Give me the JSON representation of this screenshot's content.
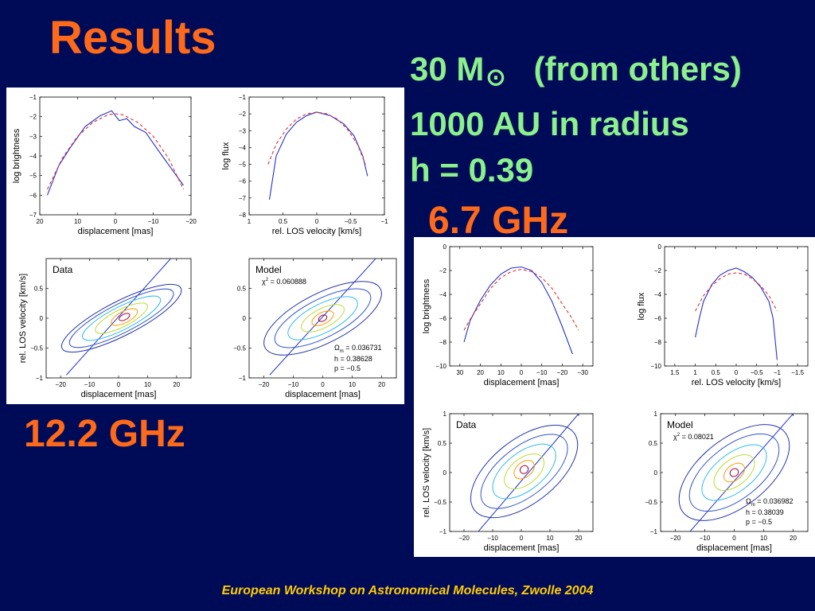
{
  "slide": {
    "title": "Results",
    "params": {
      "mass": "30 M",
      "sun_symbol": "⊙",
      "mass_note": "(from others)",
      "radius": "1000 AU in radius",
      "h": "h = 0.39"
    },
    "freq_a": "6.7 GHz",
    "freq_b": "12.2 GHz",
    "footer": "European Workshop on Astronomical Molecules, Zwolle 2004"
  },
  "colors": {
    "background": "#000b58",
    "title": "#ff6a1a",
    "params": "#8cf08c",
    "footer": "#ffcc00",
    "data_line": "#2233cc",
    "model_line": "#e03030"
  },
  "chart_data": [
    {
      "figure": "12.2 GHz",
      "panel": "brightness",
      "type": "line",
      "xlabel": "displacement [mas]",
      "ylabel": "log brightness",
      "xlim": [
        20,
        -20
      ],
      "ylim": [
        -7,
        -1
      ],
      "xticks": [
        20,
        10,
        0,
        -10,
        -20
      ],
      "yticks": [
        -1,
        -2,
        -3,
        -4,
        -5,
        -6,
        -7
      ],
      "series": [
        {
          "role": "data",
          "x": [
            18,
            15,
            12,
            8,
            4,
            1,
            -1,
            -3,
            -5,
            -8,
            -12,
            -15,
            -18
          ],
          "y": [
            -6.0,
            -4.5,
            -3.6,
            -2.5,
            -1.95,
            -1.7,
            -2.2,
            -2.1,
            -2.5,
            -2.8,
            -3.9,
            -4.7,
            -5.5
          ]
        },
        {
          "role": "model",
          "x": [
            18,
            14,
            10,
            6,
            2,
            0,
            -2,
            -6,
            -10,
            -14,
            -18
          ],
          "y": [
            -5.7,
            -4.1,
            -3.0,
            -2.3,
            -1.9,
            -1.85,
            -1.9,
            -2.3,
            -3.0,
            -4.1,
            -5.7
          ]
        }
      ]
    },
    {
      "figure": "12.2 GHz",
      "panel": "flux",
      "type": "line",
      "xlabel": "rel. LOS velocity [km/s]",
      "ylabel": "log flux",
      "xlim": [
        1,
        -1
      ],
      "ylim": [
        -8,
        -1
      ],
      "xticks": [
        1,
        0.5,
        0,
        -0.5,
        -1
      ],
      "yticks": [
        -1,
        -2,
        -3,
        -4,
        -5,
        -6,
        -7,
        -8
      ],
      "series": [
        {
          "role": "data",
          "x": [
            0.7,
            0.6,
            0.45,
            0.3,
            0.15,
            0,
            -0.2,
            -0.4,
            -0.55,
            -0.68,
            -0.75
          ],
          "y": [
            -7.1,
            -4.5,
            -3.2,
            -2.5,
            -2.1,
            -1.9,
            -2.1,
            -2.6,
            -3.3,
            -4.5,
            -5.7
          ]
        },
        {
          "role": "model",
          "x": [
            0.72,
            0.6,
            0.45,
            0.3,
            0.15,
            0,
            -0.15,
            -0.3,
            -0.45,
            -0.6,
            -0.72
          ],
          "y": [
            -5.0,
            -3.8,
            -2.9,
            -2.3,
            -2.0,
            -1.9,
            -2.0,
            -2.3,
            -2.9,
            -3.8,
            -5.0
          ]
        }
      ]
    },
    {
      "figure": "12.2 GHz",
      "panel": "data-pv",
      "type": "contour",
      "label": "Data",
      "xlabel": "displacement [mas]",
      "ylabel": "rel. LOS velocity [km/s]",
      "xlim": [
        -25,
        25
      ],
      "ylim": [
        -1,
        1
      ],
      "xticks": [
        -20,
        -10,
        0,
        10,
        20
      ],
      "yticks": [
        0.5,
        0,
        -0.5,
        -1
      ],
      "axis_line": {
        "x": [
          -18,
          18
        ],
        "y": [
          -0.95,
          1.0
        ]
      },
      "contours": [
        {
          "cx": 1,
          "cy": 0.0,
          "rx": 23,
          "ry": 0.09,
          "angle": 27,
          "color": "#2233aa"
        },
        {
          "cx": 1,
          "cy": 0.0,
          "rx": 20,
          "ry": 0.075,
          "angle": 27,
          "color": "#3355cc"
        },
        {
          "cx": 1,
          "cy": 0.0,
          "rx": 15,
          "ry": 0.06,
          "angle": 27,
          "color": "#33bbee"
        },
        {
          "cx": 1,
          "cy": 0.0,
          "rx": 10,
          "ry": 0.045,
          "angle": 27,
          "color": "#bbdd33"
        },
        {
          "cx": 2,
          "cy": 0.02,
          "rx": 5,
          "ry": 0.03,
          "angle": 27,
          "color": "#ff9900"
        },
        {
          "cx": 2,
          "cy": 0.02,
          "rx": 2,
          "ry": 0.015,
          "angle": 27,
          "color": "#aa0033"
        }
      ]
    },
    {
      "figure": "12.2 GHz",
      "panel": "model-pv",
      "type": "contour",
      "label": "Model",
      "chi2": "= 0.060888",
      "omega": "= 0.036731",
      "h": "h = 0.38628",
      "p": "p = −0.5",
      "xlabel": "displacement [mas]",
      "ylabel": "",
      "xlim": [
        -25,
        25
      ],
      "ylim": [
        -1,
        1
      ],
      "xticks": [
        -20,
        -10,
        0,
        10,
        20
      ],
      "yticks": [
        0.5,
        0,
        -0.5,
        -1
      ],
      "axis_line": {
        "x": [
          -18,
          18
        ],
        "y": [
          -0.95,
          1.0
        ]
      },
      "contours": [
        {
          "cx": 0,
          "cy": 0.0,
          "rx": 22,
          "ry": 0.13,
          "angle": 27,
          "color": "#2233aa"
        },
        {
          "cx": 0,
          "cy": 0.0,
          "rx": 18,
          "ry": 0.1,
          "angle": 27,
          "color": "#3355cc"
        },
        {
          "cx": 0,
          "cy": 0.0,
          "rx": 13,
          "ry": 0.075,
          "angle": 27,
          "color": "#33bbee"
        },
        {
          "cx": 0,
          "cy": 0.0,
          "rx": 8,
          "ry": 0.05,
          "angle": 27,
          "color": "#bbdd33"
        },
        {
          "cx": 0,
          "cy": 0.0,
          "rx": 4,
          "ry": 0.03,
          "angle": 27,
          "color": "#ff9900"
        },
        {
          "cx": 0,
          "cy": 0.0,
          "rx": 1.5,
          "ry": 0.015,
          "angle": 27,
          "color": "#aa0033"
        }
      ]
    },
    {
      "figure": "6.7 GHz",
      "panel": "brightness",
      "type": "line",
      "xlabel": "displacement [mas]",
      "ylabel": "log brightness",
      "xlim": [
        35,
        -35
      ],
      "ylim": [
        -10,
        0
      ],
      "xticks": [
        30,
        20,
        10,
        0,
        -10,
        -20,
        -30
      ],
      "yticks": [
        0,
        -2,
        -4,
        -6,
        -8,
        -10
      ],
      "series": [
        {
          "role": "data",
          "x": [
            28,
            25,
            20,
            15,
            10,
            5,
            0,
            -5,
            -10,
            -15,
            -20,
            -25
          ],
          "y": [
            -8.0,
            -6.2,
            -4.5,
            -3.2,
            -2.3,
            -1.8,
            -1.7,
            -2.0,
            -3.0,
            -4.6,
            -6.7,
            -9.0
          ]
        },
        {
          "role": "model",
          "x": [
            28,
            24,
            20,
            15,
            10,
            5,
            0,
            -5,
            -10,
            -15,
            -20,
            -24,
            -28
          ],
          "y": [
            -7.0,
            -5.8,
            -4.8,
            -3.5,
            -2.6,
            -2.1,
            -1.9,
            -2.1,
            -2.6,
            -3.5,
            -4.8,
            -5.8,
            -7.0
          ]
        }
      ]
    },
    {
      "figure": "6.7 GHz",
      "panel": "flux",
      "type": "line",
      "xlabel": "rel. LOS velocity [km/s]",
      "ylabel": "log flux",
      "xlim": [
        1.75,
        -1.75
      ],
      "ylim": [
        -10,
        0
      ],
      "xticks": [
        1.5,
        1,
        0.5,
        0,
        -0.5,
        -1,
        -1.5
      ],
      "yticks": [
        0,
        -2,
        -4,
        -6,
        -8,
        -10
      ],
      "series": [
        {
          "role": "data",
          "x": [
            1.0,
            0.9,
            0.8,
            0.6,
            0.4,
            0.2,
            0,
            -0.2,
            -0.4,
            -0.6,
            -0.8,
            -0.9,
            -1.0
          ],
          "y": [
            -7.6,
            -6.0,
            -4.6,
            -3.2,
            -2.4,
            -2.0,
            -1.8,
            -2.1,
            -2.6,
            -3.4,
            -4.6,
            -6.0,
            -9.5
          ]
        },
        {
          "role": "model",
          "x": [
            1.0,
            0.8,
            0.6,
            0.4,
            0.2,
            0,
            -0.2,
            -0.4,
            -0.6,
            -0.8,
            -1.0
          ],
          "y": [
            -5.4,
            -4.1,
            -3.3,
            -2.7,
            -2.3,
            -2.2,
            -2.3,
            -2.7,
            -3.3,
            -4.1,
            -5.4
          ]
        }
      ]
    },
    {
      "figure": "6.7 GHz",
      "panel": "data-pv",
      "type": "contour",
      "label": "Data",
      "xlabel": "displacement [mas]",
      "ylabel": "rel. LOS velocity [km/s]",
      "xlim": [
        -25,
        25
      ],
      "ylim": [
        -1,
        1
      ],
      "xticks": [
        -20,
        -10,
        0,
        10,
        20
      ],
      "yticks": [
        1,
        0.5,
        0,
        -0.5,
        -1
      ],
      "axis_line": {
        "x": [
          -15,
          20
        ],
        "y": [
          -1.0,
          1.0
        ]
      },
      "contours": [
        {
          "cx": 1,
          "cy": 0.02,
          "rx": 22,
          "ry": 0.17,
          "angle": 38,
          "color": "#2233aa"
        },
        {
          "cx": 1,
          "cy": 0.02,
          "rx": 18,
          "ry": 0.13,
          "angle": 38,
          "color": "#3355cc"
        },
        {
          "cx": 1,
          "cy": 0.02,
          "rx": 13,
          "ry": 0.1,
          "angle": 38,
          "color": "#33bbee"
        },
        {
          "cx": 1,
          "cy": 0.02,
          "rx": 8,
          "ry": 0.07,
          "angle": 38,
          "color": "#bbdd33"
        },
        {
          "cx": 1,
          "cy": 0.05,
          "rx": 4,
          "ry": 0.04,
          "angle": 38,
          "color": "#ff9900"
        },
        {
          "cx": 1,
          "cy": 0.05,
          "rx": 1.5,
          "ry": 0.02,
          "angle": 38,
          "color": "#aa0033"
        }
      ]
    },
    {
      "figure": "6.7 GHz",
      "panel": "model-pv",
      "type": "contour",
      "label": "Model",
      "chi2": "= 0.08021",
      "omega": "= 0.036982",
      "h": "h = 0.38039",
      "p": "p = −0.5",
      "xlabel": "displacement [mas]",
      "ylabel": "",
      "xlim": [
        -25,
        25
      ],
      "ylim": [
        -1,
        1
      ],
      "xticks": [
        -20,
        -10,
        0,
        10,
        20
      ],
      "yticks": [
        1,
        0.5,
        0,
        -0.5,
        -1
      ],
      "axis_line": {
        "x": [
          -15,
          20
        ],
        "y": [
          -1.0,
          1.0
        ]
      },
      "contours": [
        {
          "cx": 0,
          "cy": 0.0,
          "rx": 22,
          "ry": 0.18,
          "angle": 38,
          "color": "#2233aa"
        },
        {
          "cx": 0,
          "cy": 0.0,
          "rx": 18,
          "ry": 0.14,
          "angle": 38,
          "color": "#3355cc"
        },
        {
          "cx": 0,
          "cy": 0.0,
          "rx": 13,
          "ry": 0.1,
          "angle": 38,
          "color": "#33bbee"
        },
        {
          "cx": 0,
          "cy": 0.0,
          "rx": 8,
          "ry": 0.07,
          "angle": 38,
          "color": "#bbdd33"
        },
        {
          "cx": 0,
          "cy": 0.0,
          "rx": 4,
          "ry": 0.04,
          "angle": 38,
          "color": "#ff9900"
        },
        {
          "cx": 0,
          "cy": 0.0,
          "rx": 1.5,
          "ry": 0.02,
          "angle": 38,
          "color": "#aa0033"
        }
      ]
    }
  ]
}
